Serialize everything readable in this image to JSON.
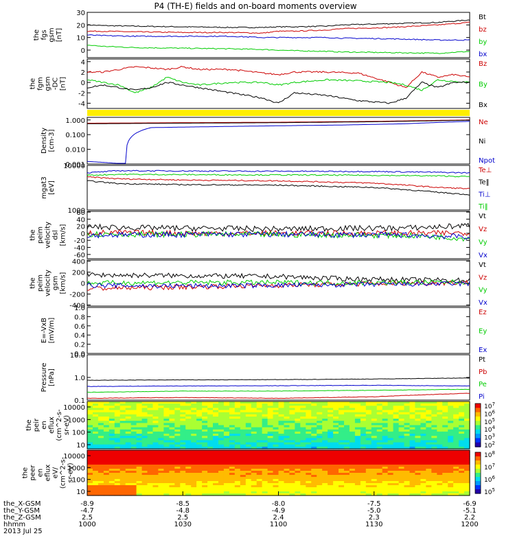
{
  "title": "P4 (TH-E) fields and on-board moments overview",
  "colors": {
    "black": "#000000",
    "red": "#cc0000",
    "green": "#00cc00",
    "blue": "#0000cc",
    "yellow": "#ffee00"
  },
  "chart_data": [
    {
      "id": "fgs",
      "type": "line",
      "ylabel": [
        "the",
        "fgs",
        "gsm",
        "[nT]"
      ],
      "ylim": [
        -6,
        30
      ],
      "yticks": [
        30,
        20,
        10,
        0
      ],
      "series": [
        {
          "name": "Bt",
          "color": "black",
          "x": [
            0,
            5,
            15,
            30,
            45,
            55,
            60,
            65,
            75,
            80,
            95,
            110,
            120
          ],
          "values": [
            20,
            19.5,
            19,
            18.5,
            18,
            18,
            18.5,
            18.5,
            19,
            20,
            21,
            22,
            24
          ]
        },
        {
          "name": "bz",
          "color": "red",
          "x": [
            0,
            5,
            15,
            30,
            45,
            55,
            60,
            65,
            75,
            80,
            95,
            110,
            120
          ],
          "values": [
            15,
            15,
            14.5,
            14,
            14,
            13.5,
            15,
            15,
            16,
            17,
            18,
            20,
            22
          ]
        },
        {
          "name": "by",
          "color": "green",
          "x": [
            0,
            5,
            15,
            30,
            45,
            55,
            60,
            65,
            75,
            80,
            95,
            110,
            120
          ],
          "values": [
            4,
            3,
            2,
            1.5,
            1,
            0.5,
            0,
            -0.5,
            -1,
            -1.5,
            -2,
            -2.5,
            -1
          ]
        },
        {
          "name": "bx",
          "color": "blue",
          "x": [
            0,
            5,
            15,
            30,
            45,
            55,
            60,
            65,
            75,
            80,
            95,
            110,
            120
          ],
          "values": [
            12,
            11.5,
            11,
            11,
            11,
            10,
            10,
            10,
            10,
            9.5,
            9,
            8,
            8
          ]
        }
      ]
    },
    {
      "id": "fgm",
      "type": "line",
      "ylabel": [
        "the",
        "fgm",
        "gsm",
        "-DC",
        "[nT]"
      ],
      "ylim": [
        -5,
        4.5
      ],
      "yticks": [
        4,
        2,
        0,
        -2,
        -4
      ],
      "series": [
        {
          "name": "Bz",
          "color": "red",
          "x": [
            0,
            5,
            10,
            15,
            20,
            25,
            30,
            35,
            45,
            55,
            60,
            65,
            75,
            85,
            95,
            100,
            105,
            110,
            115,
            120
          ],
          "values": [
            2,
            2,
            2.5,
            3,
            2.8,
            2.5,
            3,
            2.5,
            2.5,
            1.8,
            1.5,
            2,
            2,
            1.8,
            0,
            -1,
            2,
            1,
            1.5,
            1
          ]
        },
        {
          "name": "By",
          "color": "green",
          "x": [
            0,
            5,
            10,
            15,
            20,
            25,
            30,
            35,
            45,
            55,
            60,
            65,
            75,
            85,
            95,
            100,
            105,
            110,
            115,
            120
          ],
          "values": [
            0.5,
            0,
            -0.5,
            -2,
            -1,
            1,
            0,
            -0.5,
            0,
            0,
            -0.5,
            0,
            0.5,
            0.3,
            0,
            -0.5,
            -1.5,
            0.5,
            0.2,
            0
          ]
        },
        {
          "name": "Bx",
          "color": "black",
          "x": [
            0,
            5,
            10,
            15,
            20,
            25,
            30,
            35,
            45,
            55,
            60,
            65,
            75,
            85,
            95,
            100,
            105,
            110,
            115,
            120
          ],
          "values": [
            -1,
            -0.5,
            -1,
            -1.5,
            -1,
            0,
            -0.5,
            -1,
            -2,
            -3,
            -4,
            -2,
            -2.5,
            -3.5,
            -4,
            -3,
            0,
            -1,
            0,
            0
          ]
        }
      ]
    },
    {
      "id": "density",
      "type": "line",
      "scale": "log",
      "ylabel": [
        "Density",
        "[cm-3]"
      ],
      "ylim": [
        0.001,
        1.5
      ],
      "yticks": [
        "1.000",
        "0.100",
        "0.010",
        "0.001"
      ],
      "series": [
        {
          "name": "Ne",
          "color": "red",
          "x": [
            0,
            30,
            60,
            90,
            120
          ],
          "values": [
            0.6,
            0.65,
            0.7,
            0.8,
            1.0
          ]
        },
        {
          "name": "Ni",
          "color": "black",
          "x": [
            0,
            30,
            60,
            90,
            120
          ],
          "values": [
            0.55,
            0.6,
            0.65,
            0.75,
            0.95
          ]
        },
        {
          "name": "Npot",
          "color": "blue",
          "x": [
            0,
            12,
            20,
            40,
            60,
            80,
            100,
            120
          ],
          "values": [
            0.0015,
            0.001,
            0.3,
            0.35,
            0.4,
            0.45,
            0.55,
            0.8
          ]
        }
      ]
    },
    {
      "id": "temperature",
      "type": "line",
      "scale": "log",
      "ylabel": [
        "mgat3",
        "[eV]"
      ],
      "ylim": [
        1000,
        10000
      ],
      "yticks": [
        "10000",
        "1000"
      ],
      "series": [
        {
          "name": "Te⊥",
          "color": "red",
          "x": [
            0,
            10,
            30,
            60,
            90,
            110,
            120
          ],
          "values": [
            5500,
            5000,
            4700,
            4500,
            4000,
            3200,
            3000
          ]
        },
        {
          "name": "Te‖",
          "color": "black",
          "x": [
            0,
            10,
            30,
            60,
            90,
            110,
            120
          ],
          "values": [
            4500,
            3900,
            3700,
            3600,
            3200,
            2500,
            2200
          ]
        },
        {
          "name": "Ti⊥",
          "color": "blue",
          "x": [
            0,
            10,
            30,
            60,
            90,
            110,
            120
          ],
          "values": [
            6800,
            7600,
            7500,
            7400,
            7300,
            7000,
            6800
          ]
        },
        {
          "name": "Ti‖",
          "color": "green",
          "x": [
            0,
            10,
            30,
            60,
            90,
            110,
            120
          ],
          "values": [
            6000,
            6300,
            6200,
            6100,
            6000,
            5800,
            5600
          ]
        }
      ]
    },
    {
      "id": "peim-dsl",
      "type": "line",
      "ylabel": [
        "the",
        "peim",
        "velocity",
        "dsl",
        "[km/s]"
      ],
      "ylim": [
        -72,
        62
      ],
      "yticks": [
        60,
        40,
        20,
        0,
        -20,
        -40,
        -60
      ],
      "series": [
        {
          "name": "Vt",
          "color": "black",
          "x": [
            0,
            20,
            40,
            60,
            80,
            100,
            110,
            120
          ],
          "values": [
            18,
            15,
            14,
            12,
            14,
            15,
            18,
            22
          ]
        },
        {
          "name": "Vz",
          "color": "red",
          "x": [
            0,
            20,
            40,
            60,
            80,
            100,
            110,
            120
          ],
          "values": [
            2,
            1,
            0,
            0,
            0,
            0,
            0,
            2
          ]
        },
        {
          "name": "Vy",
          "color": "green",
          "x": [
            0,
            20,
            40,
            60,
            80,
            100,
            110,
            120
          ],
          "values": [
            -2,
            -3,
            -3,
            -4,
            -5,
            -6,
            -10,
            -15
          ]
        },
        {
          "name": "Vx",
          "color": "blue",
          "x": [
            0,
            20,
            40,
            60,
            80,
            100,
            110,
            120
          ],
          "values": [
            -5,
            -4,
            -3,
            -3,
            -4,
            -5,
            -8,
            -10
          ]
        }
      ]
    },
    {
      "id": "peim-gsm",
      "type": "line",
      "ylabel": [
        "the",
        "peim",
        "velocity",
        "gsm",
        "[km/s]"
      ],
      "ylim": [
        -420,
        420
      ],
      "yticks": [
        400,
        200,
        0,
        -200,
        -400
      ],
      "series": [
        {
          "name": "Vt",
          "color": "black",
          "x": [
            0,
            20,
            40,
            60,
            80,
            100,
            120
          ],
          "values": [
            150,
            140,
            130,
            120,
            80,
            60,
            50
          ]
        },
        {
          "name": "Vz",
          "color": "red",
          "x": [
            0,
            20,
            40,
            60,
            80,
            100,
            120
          ],
          "values": [
            -100,
            -80,
            -60,
            -40,
            -20,
            0,
            10
          ]
        },
        {
          "name": "Vy",
          "color": "green",
          "x": [
            0,
            20,
            40,
            60,
            80,
            100,
            120
          ],
          "values": [
            0,
            10,
            10,
            10,
            5,
            10,
            20
          ]
        },
        {
          "name": "Vx",
          "color": "blue",
          "x": [
            0,
            20,
            40,
            60,
            80,
            100,
            120
          ],
          "values": [
            -40,
            -50,
            -50,
            -40,
            -30,
            -20,
            -10
          ]
        }
      ]
    },
    {
      "id": "efield",
      "type": "line",
      "ylabel": [
        "E=-VxB",
        "[mV/m]"
      ],
      "ylim": [
        0,
        1.0
      ],
      "yticks": [
        "1.0",
        "0.8",
        "0.6",
        "0.4",
        "0.2",
        "0.0"
      ],
      "series": [
        {
          "name": "Ez",
          "color": "red",
          "x": [],
          "values": []
        },
        {
          "name": "Ey",
          "color": "green",
          "x": [],
          "values": []
        },
        {
          "name": "Ex",
          "color": "blue",
          "x": [],
          "values": []
        }
      ]
    },
    {
      "id": "pressure",
      "type": "line",
      "scale": "log",
      "ylabel": [
        "Pressure",
        "[nPa]"
      ],
      "ylim": [
        0.1,
        10
      ],
      "yticks": [
        "10.0",
        "1.0",
        "0.1"
      ],
      "series": [
        {
          "name": "Pt",
          "color": "black",
          "x": [
            0,
            30,
            60,
            90,
            120
          ],
          "values": [
            0.75,
            0.78,
            0.8,
            0.85,
            0.95
          ]
        },
        {
          "name": "Pb",
          "color": "red",
          "x": [
            0,
            30,
            60,
            90,
            120
          ],
          "values": [
            0.12,
            0.13,
            0.12,
            0.14,
            0.2
          ]
        },
        {
          "name": "Pe",
          "color": "green",
          "x": [
            0,
            30,
            60,
            90,
            120
          ],
          "values": [
            0.22,
            0.25,
            0.25,
            0.27,
            0.3
          ]
        },
        {
          "name": "Pi",
          "color": "blue",
          "x": [
            0,
            30,
            60,
            90,
            120
          ],
          "values": [
            0.4,
            0.42,
            0.43,
            0.45,
            0.42
          ]
        }
      ]
    },
    {
      "id": "peir",
      "type": "heatmap",
      "ylabel": [
        "the",
        "peir",
        "en",
        "eflux",
        "(cm^2-s-",
        "sr-eV)"
      ],
      "yticks": [
        "10000",
        "1000",
        "100",
        "10"
      ],
      "colorbar": [
        "10^7",
        "10^6",
        "10^5",
        "10^4",
        "10^3",
        "10^2"
      ]
    },
    {
      "id": "peer",
      "type": "heatmap",
      "ylabel": [
        "the",
        "peer",
        "en",
        "eflux",
        "eV/",
        "(cm^2-s-",
        "sr-eV)"
      ],
      "yticks": [
        "10000",
        "1000",
        "100",
        "10"
      ],
      "colorbar": [
        "10^8",
        "10^7",
        "10^6",
        "10^5"
      ]
    }
  ],
  "xaxis": {
    "tick_minutes": [
      0,
      30,
      60,
      90,
      120
    ],
    "rows": [
      {
        "label": "the_X-GSM",
        "values": [
          "-8.9",
          "-8.5",
          "-8.0",
          "-7.5",
          "-6.9"
        ]
      },
      {
        "label": "the_Y-GSM",
        "values": [
          "-4.7",
          "-4.8",
          "-4.9",
          "-5.0",
          "-5.1"
        ]
      },
      {
        "label": "the_Z-GSM",
        "values": [
          "2.5",
          "2.5",
          "2.4",
          "2.3",
          "2.2"
        ]
      },
      {
        "label": "hhmm",
        "values": [
          "1000",
          "1030",
          "1100",
          "1130",
          "1200"
        ]
      }
    ],
    "date": "2013 Jul 25"
  }
}
